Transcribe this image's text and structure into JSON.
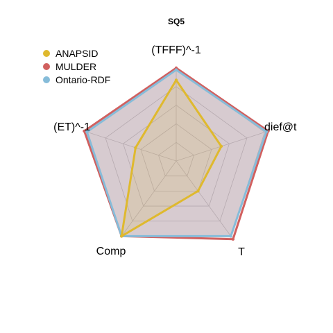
{
  "chart_data": {
    "type": "radar",
    "title": "SQ5",
    "axes": [
      "(TFFF)^-1",
      "dief@t",
      "T",
      "Comp",
      "(ET)^-1"
    ],
    "scale": [
      0,
      1
    ],
    "grid_levels": 5,
    "grid": true,
    "legend_position": "top-left",
    "series": [
      {
        "name": "ANAPSID",
        "color": "#DFB92E",
        "values": [
          0.87,
          0.51,
          0.4,
          1.0,
          0.46
        ]
      },
      {
        "name": "MULDER",
        "color": "#D1605F",
        "values": [
          1.0,
          1.04,
          1.04,
          1.0,
          1.04
        ]
      },
      {
        "name": "Ontario-RDF",
        "color": "#86BCD9",
        "values": [
          0.98,
          1.02,
          1.0,
          1.0,
          1.01
        ]
      }
    ]
  }
}
